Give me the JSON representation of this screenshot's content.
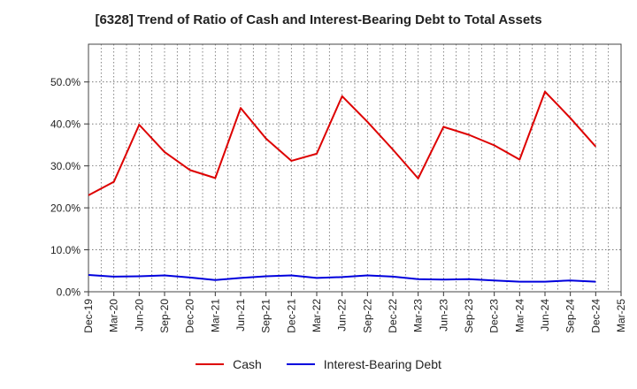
{
  "chart_data": {
    "type": "line",
    "title": "[6328]  Trend of Ratio of Cash and Interest-Bearing Debt to Total Assets",
    "xlabel": "",
    "ylabel": "",
    "x": [
      "Dec-19",
      "Mar-20",
      "Jun-20",
      "Sep-20",
      "Dec-20",
      "Mar-21",
      "Jun-21",
      "Sep-21",
      "Dec-21",
      "Mar-22",
      "Jun-22",
      "Sep-22",
      "Dec-22",
      "Mar-23",
      "Jun-23",
      "Sep-23",
      "Dec-23",
      "Mar-24",
      "Jun-24",
      "Sep-24",
      "Dec-24",
      "Mar-25"
    ],
    "yticks": [
      "0.0%",
      "10.0%",
      "20.0%",
      "30.0%",
      "40.0%",
      "50.0%"
    ],
    "ylim": [
      0,
      50
    ],
    "series": [
      {
        "name": "Cash",
        "color": "#dd0000",
        "values": [
          23.0,
          26.2,
          39.8,
          33.3,
          29.0,
          27.1,
          43.8,
          36.5,
          31.2,
          32.9,
          46.6,
          40.5,
          33.9,
          27.0,
          39.3,
          37.4,
          34.9,
          31.5,
          47.7,
          41.4,
          34.6,
          null
        ]
      },
      {
        "name": "Interest-Bearing Debt",
        "color": "#0000dd",
        "values": [
          4.0,
          3.6,
          3.7,
          3.9,
          3.4,
          2.8,
          3.3,
          3.7,
          3.9,
          3.3,
          3.5,
          3.9,
          3.6,
          3.0,
          2.9,
          3.0,
          2.7,
          2.4,
          2.4,
          2.7,
          2.4,
          null
        ]
      }
    ],
    "grid": true,
    "legend_position": "bottom"
  }
}
